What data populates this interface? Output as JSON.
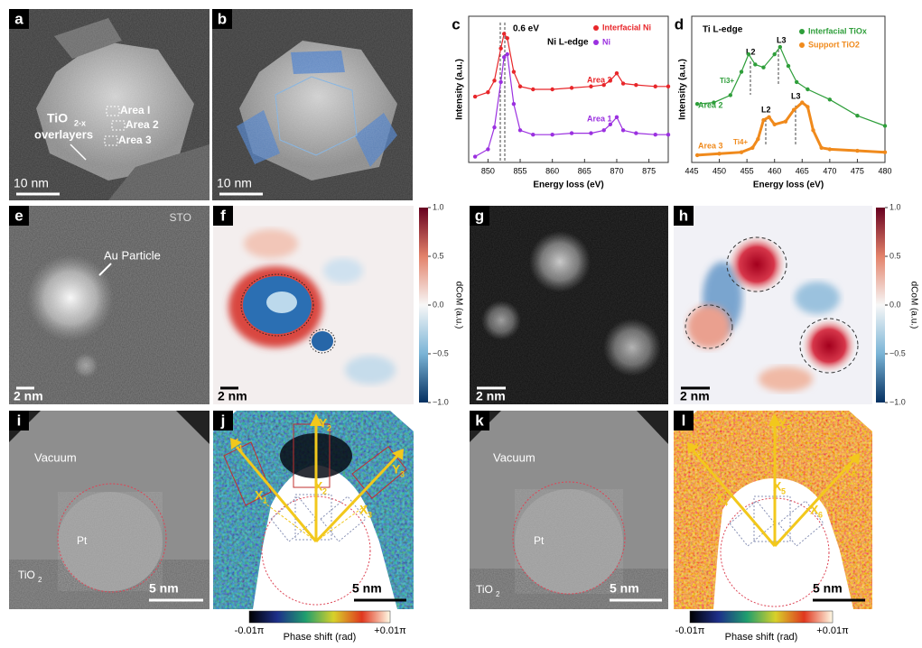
{
  "panels": [
    {
      "label": "a",
      "scale_bar": "10 nm",
      "texts": [
        "TiO",
        "2-x",
        "overlayers",
        "Area I",
        "Area 2",
        "Area 3"
      ]
    },
    {
      "label": "b",
      "scale_bar": "10 nm",
      "texts": []
    },
    {
      "label": "e",
      "scale_bar": "2 nm",
      "texts": [
        "STO",
        "Au Particle"
      ]
    },
    {
      "label": "f",
      "scale_bar": "2 nm",
      "texts": []
    },
    {
      "label": "g",
      "scale_bar": "2 nm",
      "texts": []
    },
    {
      "label": "h",
      "scale_bar": "2 nm",
      "texts": []
    },
    {
      "label": "i",
      "scale_bar": "5 nm",
      "texts": [
        "Vacuum",
        "Pt",
        "TiO",
        "2"
      ]
    },
    {
      "label": "j",
      "scale_bar": "5 nm",
      "texts": [
        "Y",
        "1",
        "X",
        "1",
        "Y",
        "2",
        "X",
        "2",
        "X",
        "3",
        "Y",
        "3"
      ]
    },
    {
      "label": "k",
      "scale_bar": "5 nm",
      "texts": [
        "Vacuum",
        "Pt",
        "TiO",
        "2"
      ]
    },
    {
      "label": "l",
      "scale_bar": "5 nm",
      "texts": [
        "Y",
        "4",
        "X",
        "4",
        "Y",
        "5",
        "X",
        "5",
        "X",
        "6",
        "Y",
        "6"
      ]
    }
  ],
  "colorbars": [
    {
      "label": "dCoM (a.u.)",
      "ticks": [
        {
          "value": 1,
          "label": "1.0"
        },
        0.5,
        {
          "value": 0,
          "label": "0.0"
        },
        {
          "value": -0.5,
          "label": "−0.5"
        },
        {
          "value": -1,
          "label": "−1.0"
        }
      ]
    },
    {
      "label": "dCoM (a.u.)",
      "ticks": [
        {
          "value": 1,
          "label": "1.0"
        },
        0.5,
        {
          "value": 0,
          "label": "0.0"
        },
        {
          "value": -0.5,
          "label": "−0.5"
        },
        {
          "value": -1,
          "label": "−1.0"
        }
      ]
    },
    {
      "label": "Phase shift (rad)",
      "min_label": "-0.01π",
      "max_label": "+0.01π"
    },
    {
      "label": "Phase shift (rad)",
      "min_label": "-0.01π",
      "max_label": "+0.01π"
    }
  ],
  "chart_data": [
    {
      "type": "line",
      "label": "c",
      "xlabel": "Energy loss (eV)",
      "ylabel": "Intensity (a.u.)",
      "xlim": [
        847,
        878
      ],
      "xticks": [
        850,
        855,
        860,
        865,
        870,
        875
      ],
      "ylim": [
        0,
        10
      ],
      "annotations": [
        "0.6 eV",
        "Ni L-edge",
        "Area 2",
        "Area 1"
      ],
      "series": [
        {
          "name": "Interfacial Ni",
          "color": "#e8262a",
          "x": [
            848,
            850,
            851,
            852,
            852.5,
            853,
            854,
            855,
            857,
            860,
            863,
            866,
            868,
            869,
            870,
            871,
            873,
            876,
            878
          ],
          "values": [
            4.5,
            4.8,
            5.6,
            7.8,
            8.8,
            8.5,
            6.2,
            5.2,
            5.0,
            5.0,
            5.1,
            5.2,
            5.3,
            5.6,
            6.1,
            5.4,
            5.3,
            5.2,
            5.2
          ]
        },
        {
          "name": "Ni",
          "color": "#9b30e0",
          "x": [
            848,
            850,
            851,
            852,
            852.5,
            853,
            854,
            855,
            857,
            860,
            863,
            866,
            868,
            869,
            870,
            871,
            873,
            876,
            878
          ],
          "values": [
            0.4,
            0.9,
            2.4,
            5.5,
            7.2,
            7.4,
            4.0,
            2.2,
            1.9,
            1.9,
            2.0,
            2.0,
            2.2,
            2.6,
            3.1,
            2.2,
            2.0,
            1.9,
            1.9
          ]
        }
      ]
    },
    {
      "type": "line",
      "label": "d",
      "xlabel": "Energy loss (eV)",
      "ylabel": "Intensity (a.u.)",
      "xlim": [
        445,
        480
      ],
      "xticks": [
        445,
        450,
        455,
        460,
        465,
        470,
        475,
        480
      ],
      "ylim": [
        0,
        10
      ],
      "annotations": [
        "Ti L-edge",
        "L2",
        "L3",
        "L2",
        "L3",
        "Ti3+",
        "Ti4+",
        "Area 2",
        "Area 3"
      ],
      "series": [
        {
          "name": "Interfacial TiOx",
          "color": "#2e9e3a",
          "x": [
            446,
            449,
            452,
            454,
            455.3,
            456.5,
            458,
            460,
            461,
            462.5,
            464,
            466,
            470,
            475,
            480
          ],
          "values": [
            4.0,
            4.1,
            4.6,
            6.2,
            7.4,
            6.7,
            6.5,
            7.4,
            7.9,
            6.6,
            5.5,
            5.0,
            4.3,
            3.2,
            2.5
          ]
        },
        {
          "name": "Support TiO2",
          "color": "#f08a1c",
          "x": [
            446,
            450,
            454,
            456,
            457,
            458,
            459,
            460,
            462,
            463.5,
            465,
            466,
            467,
            468.5,
            470,
            475,
            480
          ],
          "values": [
            0.5,
            0.6,
            0.7,
            1.0,
            1.6,
            2.9,
            3.1,
            2.6,
            2.8,
            3.6,
            4.1,
            3.8,
            2.2,
            1.0,
            0.9,
            0.8,
            0.7
          ]
        }
      ]
    }
  ]
}
